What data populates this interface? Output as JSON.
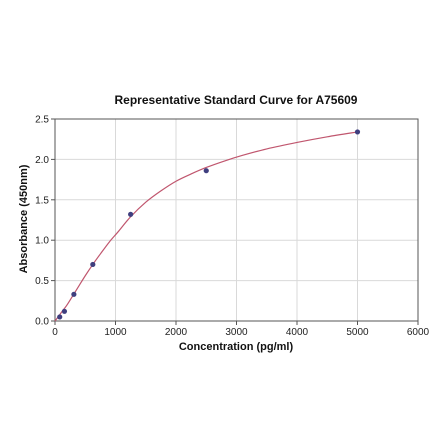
{
  "chart_data": {
    "type": "scatter",
    "title": "Representative Standard Curve for A75609",
    "xlabel": "Concentration (pg/ml)",
    "ylabel": "Absorbance (450nm)",
    "xlim": [
      0,
      6000
    ],
    "ylim": [
      0,
      2.5
    ],
    "x_ticks": [
      0,
      1000,
      2000,
      3000,
      4000,
      5000,
      6000
    ],
    "y_ticks": [
      0.0,
      0.5,
      1.0,
      1.5,
      2.0,
      2.5
    ],
    "x_tick_labels": [
      "0",
      "1000",
      "2000",
      "3000",
      "4000",
      "5000",
      "6000"
    ],
    "y_tick_labels": [
      "0.0",
      "0.5",
      "1.0",
      "1.5",
      "2.0",
      "2.5"
    ],
    "grid": true,
    "series": [
      {
        "points": [
          {
            "x": 78,
            "y": 0.05
          },
          {
            "x": 156,
            "y": 0.12
          },
          {
            "x": 312,
            "y": 0.33
          },
          {
            "x": 625,
            "y": 0.7
          },
          {
            "x": 1250,
            "y": 1.32
          },
          {
            "x": 2500,
            "y": 1.86
          },
          {
            "x": 5000,
            "y": 2.34
          }
        ],
        "color": "#3f3f7f"
      }
    ],
    "fit_curve": {
      "color": "#c0566e",
      "x": [
        0,
        50,
        100,
        150,
        200,
        300,
        400,
        500,
        625,
        750,
        900,
        1050,
        1250,
        1500,
        1750,
        2000,
        2250,
        2500,
        2800,
        3100,
        3500,
        4000,
        4500,
        5000
      ],
      "y": [
        0.0,
        0.05,
        0.1,
        0.15,
        0.2,
        0.32,
        0.44,
        0.56,
        0.7,
        0.83,
        0.98,
        1.11,
        1.29,
        1.47,
        1.61,
        1.73,
        1.82,
        1.9,
        1.98,
        2.05,
        2.13,
        2.21,
        2.28,
        2.34
      ]
    }
  }
}
